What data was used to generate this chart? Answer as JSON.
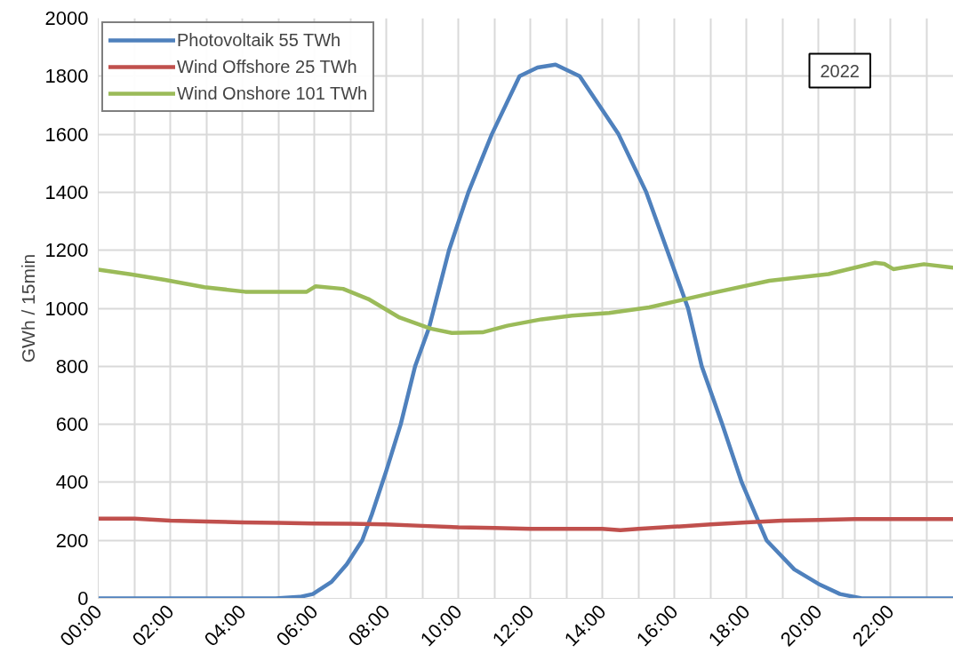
{
  "chart_data": {
    "type": "line",
    "ylabel": "GWh / 15min",
    "annotations": [
      "2022"
    ],
    "xlim": [
      0,
      23.75
    ],
    "ylim": [
      0,
      2000
    ],
    "xticks": [
      {
        "value": 0,
        "label": "00:00"
      },
      {
        "value": 1,
        "label": null
      },
      {
        "value": 2,
        "label": "02:00"
      },
      {
        "value": 3,
        "label": null
      },
      {
        "value": 4,
        "label": "04:00"
      },
      {
        "value": 5,
        "label": null
      },
      {
        "value": 6,
        "label": "06:00"
      },
      {
        "value": 7,
        "label": null
      },
      {
        "value": 8,
        "label": "08:00"
      },
      {
        "value": 9,
        "label": null
      },
      {
        "value": 10,
        "label": "10:00"
      },
      {
        "value": 11,
        "label": null
      },
      {
        "value": 12,
        "label": "12:00"
      },
      {
        "value": 13,
        "label": null
      },
      {
        "value": 14,
        "label": "14:00"
      },
      {
        "value": 15,
        "label": null
      },
      {
        "value": 16,
        "label": "16:00"
      },
      {
        "value": 17,
        "label": null
      },
      {
        "value": 18,
        "label": "18:00"
      },
      {
        "value": 19,
        "label": null
      },
      {
        "value": 20,
        "label": "20:00"
      },
      {
        "value": 21,
        "label": null
      },
      {
        "value": 22,
        "label": "22:00"
      },
      {
        "value": 23,
        "label": null
      }
    ],
    "yticks": [
      0,
      200,
      400,
      600,
      800,
      1000,
      1200,
      1400,
      1600,
      1800,
      2000
    ],
    "grid": true,
    "legend": "top left",
    "marker": "none",
    "line_style": "solid",
    "series": [
      {
        "name": "Photovoltaik 55 TWh",
        "color": "#4f81bd",
        "x": [
          0,
          4.93,
          5.6,
          5.96,
          6.48,
          6.9,
          7.33,
          7.6,
          8.0,
          8.4,
          8.8,
          9.18,
          9.74,
          10.28,
          10.93,
          11.7,
          12.2,
          12.7,
          13.37,
          14.45,
          15.22,
          15.8,
          16.38,
          16.76,
          17.33,
          17.87,
          18.56,
          19.33,
          20.0,
          20.6,
          21.2,
          23.75
        ],
        "values": [
          0,
          0,
          5,
          15,
          57,
          117,
          200,
          290,
          440,
          600,
          800,
          930,
          1200,
          1400,
          1600,
          1800,
          1830,
          1840,
          1800,
          1600,
          1400,
          1200,
          1000,
          800,
          600,
          400,
          200,
          100,
          50,
          15,
          0,
          0
        ]
      },
      {
        "name": "Wind Offshore 25 TWh",
        "color": "#c0504d",
        "x": [
          0,
          1,
          2,
          3,
          4,
          5,
          6,
          7,
          8,
          9,
          10,
          11,
          12,
          13,
          14,
          14.5,
          15,
          16,
          17,
          18,
          19,
          20,
          21,
          22,
          23.75
        ],
        "values": [
          275,
          275,
          268,
          265,
          262,
          260,
          258,
          257,
          255,
          250,
          245,
          243,
          240,
          240,
          240,
          235,
          240,
          247,
          255,
          262,
          268,
          270,
          273,
          273,
          273
        ]
      },
      {
        "name": "Wind Onshore 101 TWh",
        "color": "#9bbb59",
        "x": [
          0,
          0.9,
          1.85,
          2.95,
          4.08,
          5.79,
          6.04,
          6.8,
          7.5,
          8.37,
          9.23,
          9.82,
          10.67,
          11.36,
          12.31,
          13.16,
          14.19,
          15.3,
          16.07,
          17.1,
          18.64,
          20.28,
          21.57,
          21.83,
          22.08,
          22.93,
          23.75
        ],
        "values": [
          1133,
          1117,
          1098,
          1073,
          1057,
          1057,
          1076,
          1067,
          1032,
          968,
          930,
          915,
          917,
          940,
          962,
          975,
          984,
          1003,
          1025,
          1054,
          1095,
          1118,
          1157,
          1153,
          1135,
          1152,
          1140
        ]
      }
    ]
  }
}
